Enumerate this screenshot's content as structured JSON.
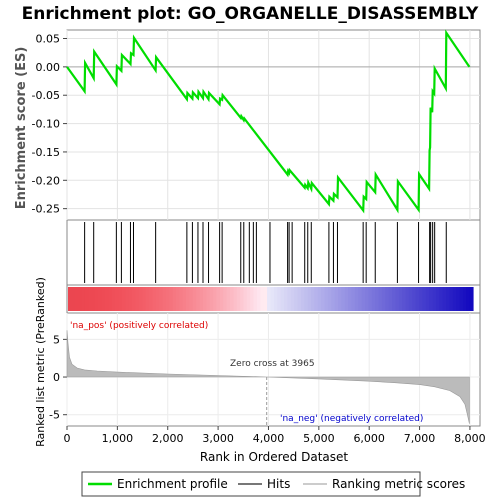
{
  "title": "Enrichment plot: GO_ORGANELLE_DISASSEMBLY",
  "colors": {
    "profile": "#00dd00",
    "hits": "#000000",
    "metric": "#bbbbbb",
    "pos_label": "#dd0000",
    "neg_label": "#0000cc"
  },
  "chart_data": [
    {
      "type": "line",
      "panel": "enrichment-profile",
      "ylabel": "Enrichment score (ES)",
      "xlim": [
        0,
        8200
      ],
      "ylim": [
        -0.27,
        0.065
      ],
      "yticks": [
        "0.05",
        "0.00",
        "-0.05",
        "-0.10",
        "-0.15",
        "-0.20",
        "-0.25"
      ],
      "grid": true,
      "x": [
        0,
        350,
        360,
        530,
        540,
        980,
        990,
        1080,
        1090,
        1260,
        1270,
        1320,
        1330,
        1760,
        1770,
        2380,
        2390,
        2490,
        2500,
        2600,
        2610,
        2700,
        2710,
        2810,
        2820,
        3030,
        3040,
        3080,
        3090,
        3450,
        3460,
        3510,
        3520,
        4380,
        4390,
        4410,
        4420,
        4720,
        4730,
        4780,
        4790,
        4850,
        4860,
        5200,
        5210,
        5290,
        5300,
        5370,
        5380,
        5880,
        5890,
        5940,
        5950,
        6120,
        6130,
        6560,
        6570,
        6980,
        6990,
        7190,
        7200,
        7210,
        7220,
        7250,
        7260,
        7290,
        7300,
        7520,
        7530,
        7990
      ],
      "y": [
        0.0,
        -0.043,
        0.007,
        -0.02,
        0.027,
        -0.031,
        0.001,
        -0.007,
        0.021,
        0.005,
        0.024,
        0.021,
        0.051,
        -0.006,
        0.017,
        -0.057,
        -0.046,
        -0.056,
        -0.045,
        -0.055,
        -0.044,
        -0.055,
        -0.044,
        -0.057,
        -0.046,
        -0.066,
        -0.056,
        -0.058,
        -0.05,
        -0.09,
        -0.087,
        -0.094,
        -0.091,
        -0.19,
        -0.184,
        -0.187,
        -0.182,
        -0.213,
        -0.208,
        -0.214,
        -0.204,
        -0.215,
        -0.205,
        -0.242,
        -0.229,
        -0.236,
        -0.224,
        -0.23,
        -0.195,
        -0.253,
        -0.229,
        -0.233,
        -0.203,
        -0.221,
        -0.19,
        -0.252,
        -0.202,
        -0.252,
        -0.189,
        -0.215,
        -0.147,
        -0.142,
        -0.072,
        -0.08,
        -0.043,
        -0.047,
        -0.003,
        -0.038,
        0.06,
        0.0
      ]
    },
    {
      "type": "bar",
      "panel": "hits",
      "xlabel": "",
      "x": [
        350,
        530,
        980,
        1080,
        1260,
        1320,
        1760,
        2380,
        2490,
        2600,
        2700,
        2810,
        3030,
        3080,
        3450,
        3510,
        3620,
        3700,
        3760,
        4030,
        4380,
        4410,
        4470,
        4720,
        4780,
        4850,
        5200,
        5290,
        5370,
        5880,
        5940,
        6120,
        6560,
        6980,
        7200,
        7220,
        7260,
        7300,
        7530
      ]
    },
    {
      "type": "area",
      "panel": "ranked-list-metric",
      "ylabel": "Ranked list metric (PreRanked)",
      "xlabel": "Rank in Ordered Dataset",
      "xlim": [
        0,
        8200
      ],
      "ylim": [
        -6.5,
        8.5
      ],
      "xticks": [
        "0",
        "1,000",
        "2,000",
        "3,000",
        "4,000",
        "5,000",
        "6,000",
        "7,000",
        "8,000"
      ],
      "yticks": [
        "5",
        "0",
        "-5"
      ],
      "x": [
        0,
        20,
        50,
        100,
        200,
        350,
        600,
        1000,
        2000,
        3000,
        3965,
        5000,
        6000,
        6500,
        7000,
        7300,
        7600,
        7800,
        7900,
        7950,
        7990
      ],
      "y": [
        6.2,
        4.5,
        2.6,
        1.7,
        1.2,
        0.95,
        0.8,
        0.65,
        0.4,
        0.2,
        0.0,
        -0.25,
        -0.55,
        -0.75,
        -1.0,
        -1.3,
        -1.8,
        -2.6,
        -3.6,
        -5.0,
        -6.2
      ]
    }
  ],
  "annotations": {
    "zero_cross": "Zero cross at 3965",
    "pos": "'na_pos' (positively correlated)",
    "neg": "'na_neg' (negatively correlated)"
  },
  "legend": [
    {
      "label": "Enrichment profile",
      "kind": "line-green"
    },
    {
      "label": "Hits",
      "kind": "line-black"
    },
    {
      "label": "Ranking metric scores",
      "kind": "line-gray"
    }
  ]
}
